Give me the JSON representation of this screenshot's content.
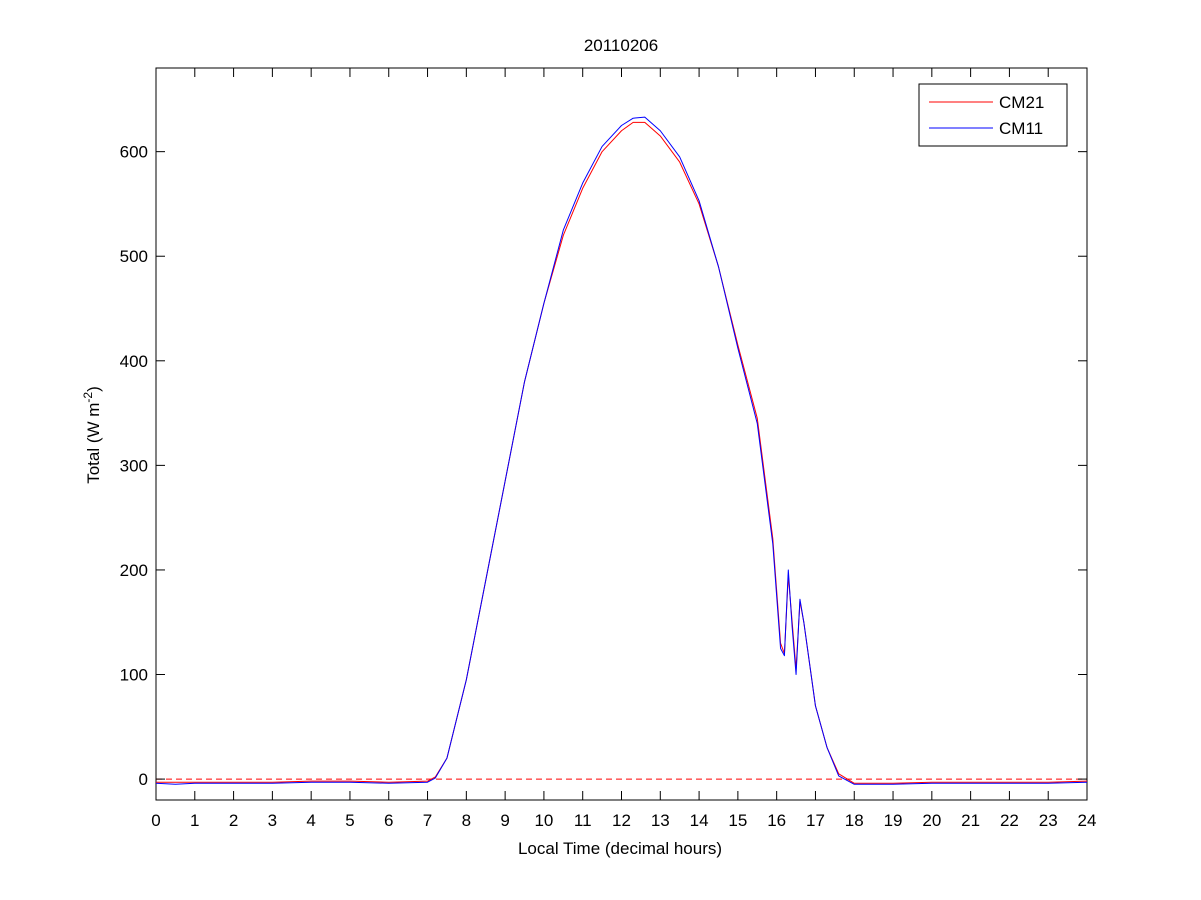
{
  "chart_data": {
    "type": "line",
    "title": "20110206",
    "xlabel": "Local Time (decimal hours)",
    "ylabel_main": "Total (W m",
    "ylabel_exp": "-2",
    "ylabel_close": ")",
    "xlim": [
      0,
      24
    ],
    "ylim": [
      -20,
      680
    ],
    "xticks": [
      0,
      1,
      2,
      3,
      4,
      5,
      6,
      7,
      8,
      9,
      10,
      11,
      12,
      13,
      14,
      15,
      16,
      17,
      18,
      19,
      20,
      21,
      22,
      23,
      24
    ],
    "yticks": [
      0,
      100,
      200,
      300,
      400,
      500,
      600
    ],
    "grid": false,
    "legend_position": "top-right",
    "reference_line": {
      "y": 0,
      "style": "dashed",
      "color": "#ff0000"
    },
    "series": [
      {
        "name": "CM21",
        "color": "#ff0000",
        "points": [
          [
            0,
            -3
          ],
          [
            1,
            -3
          ],
          [
            2,
            -3
          ],
          [
            3,
            -3
          ],
          [
            4,
            -2
          ],
          [
            5,
            -2
          ],
          [
            6,
            -3
          ],
          [
            7,
            -2
          ],
          [
            7.2,
            2
          ],
          [
            7.5,
            20
          ],
          [
            8,
            95
          ],
          [
            8.5,
            190
          ],
          [
            9,
            285
          ],
          [
            9.5,
            380
          ],
          [
            10,
            455
          ],
          [
            10.5,
            520
          ],
          [
            11,
            565
          ],
          [
            11.5,
            600
          ],
          [
            12,
            620
          ],
          [
            12.3,
            628
          ],
          [
            12.6,
            628
          ],
          [
            13,
            615
          ],
          [
            13.5,
            590
          ],
          [
            14,
            550
          ],
          [
            14.5,
            490
          ],
          [
            15,
            415
          ],
          [
            15.5,
            345
          ],
          [
            15.9,
            230
          ],
          [
            16.1,
            130
          ],
          [
            16.2,
            120
          ],
          [
            16.3,
            195
          ],
          [
            16.4,
            150
          ],
          [
            16.5,
            105
          ],
          [
            16.6,
            170
          ],
          [
            16.7,
            150
          ],
          [
            17,
            70
          ],
          [
            17.3,
            30
          ],
          [
            17.6,
            5
          ],
          [
            18,
            -4
          ],
          [
            19,
            -4
          ],
          [
            20,
            -3
          ],
          [
            21,
            -3
          ],
          [
            22,
            -3
          ],
          [
            23,
            -3
          ],
          [
            24,
            -2
          ]
        ]
      },
      {
        "name": "CM11",
        "color": "#0000ff",
        "points": [
          [
            0,
            -4
          ],
          [
            0.5,
            -5
          ],
          [
            1,
            -4
          ],
          [
            2,
            -4
          ],
          [
            3,
            -4
          ],
          [
            4,
            -3
          ],
          [
            5,
            -3
          ],
          [
            6,
            -4
          ],
          [
            7,
            -3
          ],
          [
            7.2,
            1
          ],
          [
            7.5,
            20
          ],
          [
            8,
            95
          ],
          [
            8.5,
            190
          ],
          [
            9,
            285
          ],
          [
            9.5,
            380
          ],
          [
            10,
            455
          ],
          [
            10.5,
            525
          ],
          [
            11,
            570
          ],
          [
            11.5,
            605
          ],
          [
            12,
            625
          ],
          [
            12.3,
            632
          ],
          [
            12.6,
            633
          ],
          [
            13,
            620
          ],
          [
            13.5,
            595
          ],
          [
            14,
            553
          ],
          [
            14.5,
            490
          ],
          [
            15,
            412
          ],
          [
            15.5,
            340
          ],
          [
            15.9,
            225
          ],
          [
            16.1,
            125
          ],
          [
            16.2,
            118
          ],
          [
            16.3,
            200
          ],
          [
            16.4,
            145
          ],
          [
            16.5,
            100
          ],
          [
            16.6,
            172
          ],
          [
            16.7,
            150
          ],
          [
            17,
            70
          ],
          [
            17.3,
            30
          ],
          [
            17.6,
            3
          ],
          [
            18,
            -5
          ],
          [
            19,
            -5
          ],
          [
            20,
            -4
          ],
          [
            21,
            -4
          ],
          [
            22,
            -4
          ],
          [
            23,
            -4
          ],
          [
            24,
            -3
          ]
        ]
      }
    ]
  }
}
